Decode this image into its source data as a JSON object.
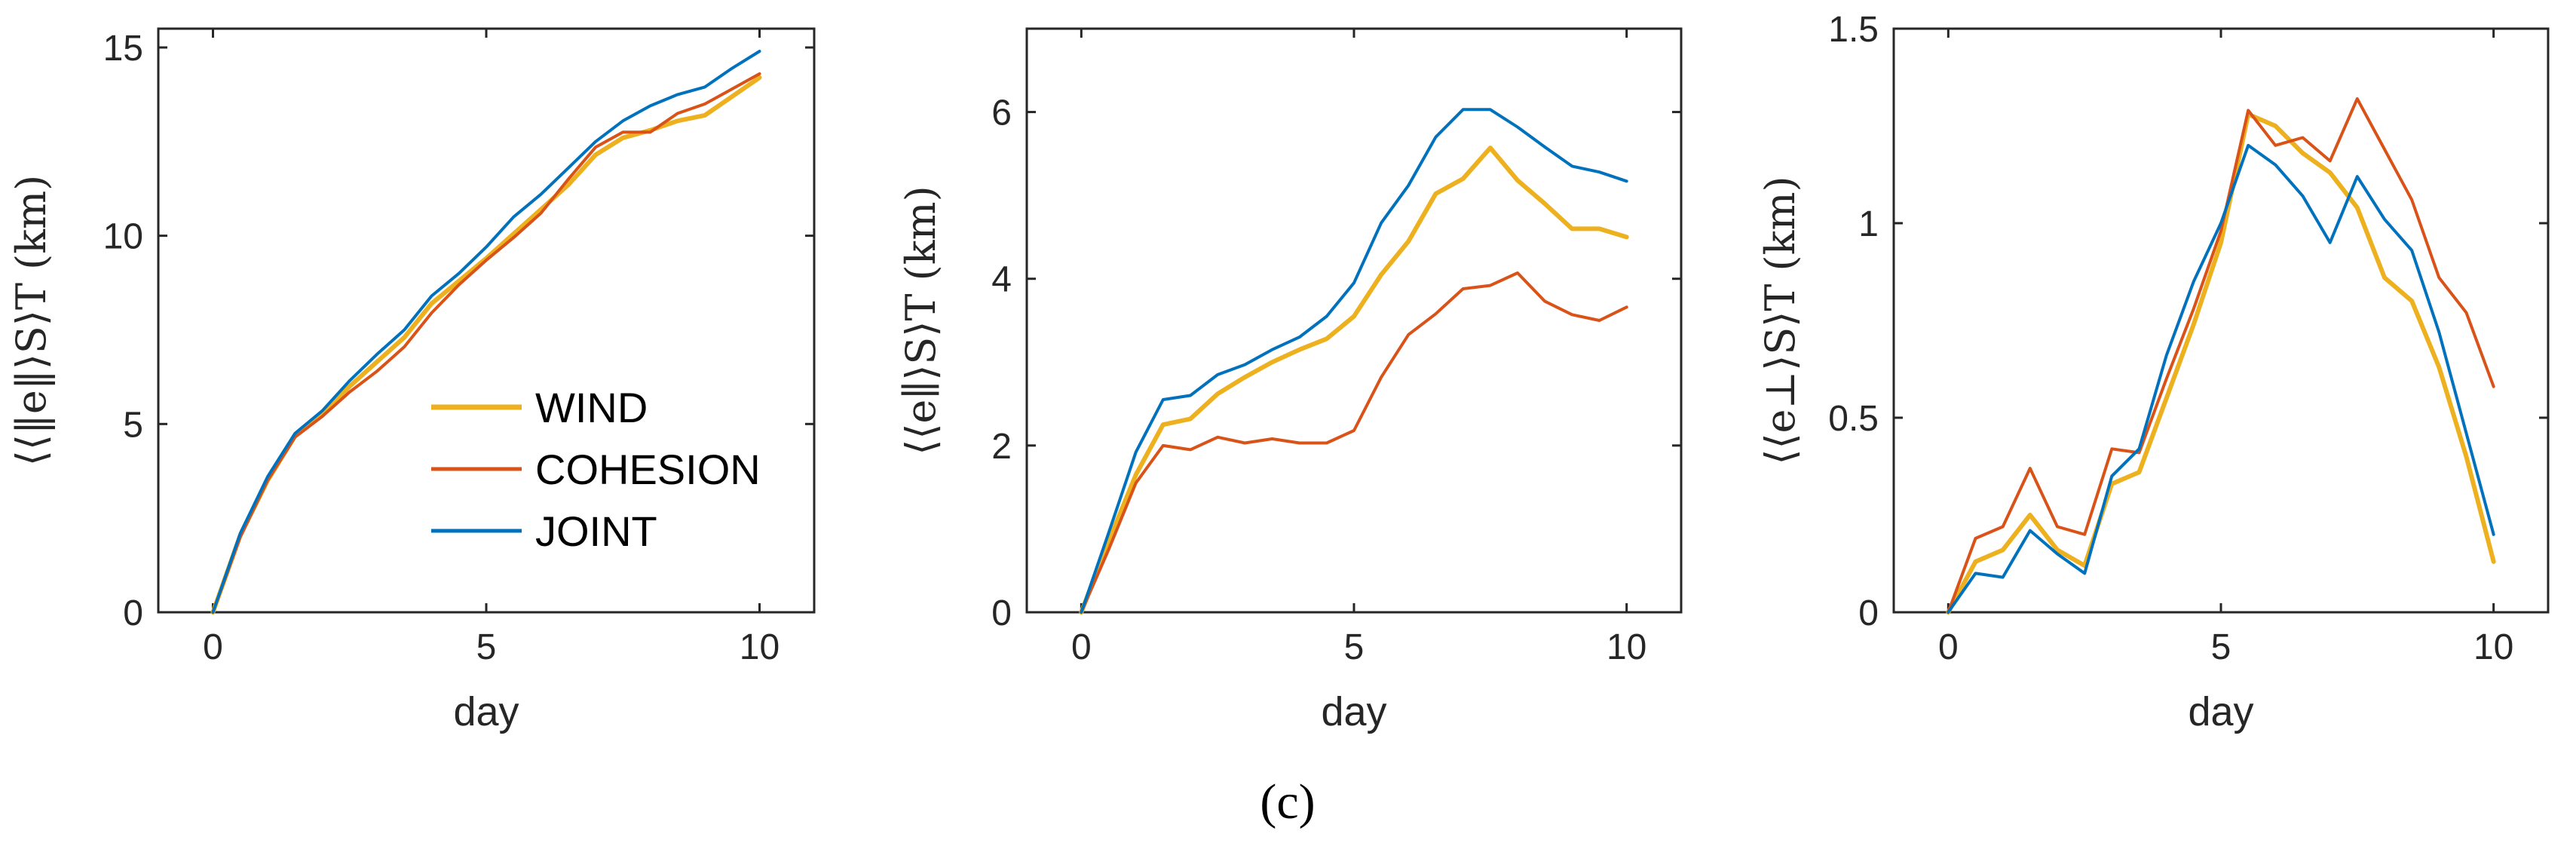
{
  "caption": "(c)",
  "colors": {
    "wind": "#EDB120",
    "cohesion": "#D95319",
    "joint": "#0072BD",
    "axis": "#262626"
  },
  "legend": {
    "entries": [
      "WIND",
      "COHESION",
      "JOINT"
    ]
  },
  "chart_data": [
    {
      "type": "line",
      "panel": "left",
      "title": "",
      "xlabel": "day",
      "ylabel": "⟨⟨‖e‖⟩S⟩T (km)",
      "xlim": [
        -1,
        11
      ],
      "ylim": [
        0,
        15.5
      ],
      "xticks": [
        0,
        5,
        10
      ],
      "xtick_labels": [
        "0",
        "5",
        "10"
      ],
      "yticks": [
        0,
        5,
        10,
        15
      ],
      "ytick_labels": [
        "0",
        "5",
        "10",
        "15"
      ],
      "x": [
        0,
        0.5,
        1,
        1.5,
        2,
        2.5,
        3,
        3.5,
        4,
        4.5,
        5,
        5.5,
        6,
        6.5,
        7,
        7.5,
        8,
        8.5,
        9,
        9.5,
        10
      ],
      "series": [
        {
          "name": "WIND",
          "key": "wind",
          "width": 6,
          "values": [
            0,
            2.05,
            3.5,
            4.68,
            5.25,
            6.0,
            6.65,
            7.3,
            8.2,
            8.8,
            9.4,
            10.05,
            10.7,
            11.35,
            12.15,
            12.6,
            12.8,
            13.05,
            13.2,
            13.7,
            14.2
          ]
        },
        {
          "name": "COHESION",
          "key": "cohesion",
          "width": 4,
          "values": [
            0,
            2.0,
            3.5,
            4.65,
            5.2,
            5.85,
            6.4,
            7.05,
            7.95,
            8.7,
            9.35,
            9.95,
            10.6,
            11.5,
            12.35,
            12.75,
            12.75,
            13.25,
            13.5,
            13.9,
            14.3
          ]
        },
        {
          "name": "JOINT",
          "key": "joint",
          "width": 4,
          "values": [
            0,
            2.1,
            3.6,
            4.75,
            5.35,
            6.15,
            6.85,
            7.5,
            8.4,
            9.0,
            9.7,
            10.5,
            11.1,
            11.8,
            12.5,
            13.05,
            13.45,
            13.75,
            13.95,
            14.45,
            14.9
          ]
        }
      ]
    },
    {
      "type": "line",
      "panel": "middle",
      "title": "",
      "xlabel": "day",
      "ylabel": "⟨⟨e∥⟩S⟩T (km)",
      "xlim": [
        -1,
        11
      ],
      "ylim": [
        0,
        7
      ],
      "xticks": [
        0,
        5,
        10
      ],
      "xtick_labels": [
        "0",
        "5",
        "10"
      ],
      "yticks": [
        0,
        2,
        4,
        6
      ],
      "ytick_labels": [
        "0",
        "2",
        "4",
        "6"
      ],
      "x": [
        0,
        0.5,
        1,
        1.5,
        2,
        2.5,
        3,
        3.5,
        4,
        4.5,
        5,
        5.5,
        6,
        6.5,
        7,
        7.5,
        8,
        8.5,
        9,
        9.5,
        10
      ],
      "series": [
        {
          "name": "WIND",
          "key": "wind",
          "width": 6,
          "values": [
            0,
            0.85,
            1.65,
            2.25,
            2.32,
            2.62,
            2.82,
            3.0,
            3.15,
            3.28,
            3.55,
            4.05,
            4.45,
            5.02,
            5.2,
            5.57,
            5.18,
            4.9,
            4.6,
            4.6,
            4.5
          ]
        },
        {
          "name": "COHESION",
          "key": "cohesion",
          "width": 4,
          "values": [
            0,
            0.75,
            1.55,
            2.0,
            1.95,
            2.1,
            2.03,
            2.08,
            2.03,
            2.03,
            2.18,
            2.82,
            3.33,
            3.58,
            3.88,
            3.92,
            4.07,
            3.73,
            3.57,
            3.5,
            3.66
          ]
        },
        {
          "name": "JOINT",
          "key": "joint",
          "width": 4,
          "values": [
            0,
            0.95,
            1.92,
            2.55,
            2.6,
            2.85,
            2.97,
            3.15,
            3.3,
            3.55,
            3.95,
            4.67,
            5.12,
            5.7,
            6.03,
            6.03,
            5.82,
            5.58,
            5.35,
            5.28,
            5.17
          ]
        }
      ]
    },
    {
      "type": "line",
      "panel": "right",
      "title": "",
      "xlabel": "day",
      "ylabel": "⟨⟨e⊥⟩S⟩T (km)",
      "xlim": [
        -1,
        11
      ],
      "ylim": [
        0,
        1.5
      ],
      "xticks": [
        0,
        5,
        10
      ],
      "xtick_labels": [
        "0",
        "5",
        "10"
      ],
      "yticks": [
        0,
        0.5,
        1,
        1.5
      ],
      "ytick_labels": [
        "0",
        "0.5",
        "1",
        "1.5"
      ],
      "x": [
        0,
        0.5,
        1,
        1.5,
        2,
        2.5,
        3,
        3.5,
        4,
        4.5,
        5,
        5.5,
        6,
        6.5,
        7,
        7.5,
        8,
        8.5,
        9,
        9.5,
        10
      ],
      "series": [
        {
          "name": "WIND",
          "key": "wind",
          "width": 6,
          "values": [
            0,
            0.13,
            0.16,
            0.25,
            0.16,
            0.12,
            0.33,
            0.36,
            0.55,
            0.74,
            0.95,
            1.28,
            1.25,
            1.18,
            1.13,
            1.04,
            0.86,
            0.8,
            0.63,
            0.4,
            0.13
          ]
        },
        {
          "name": "COHESION",
          "key": "cohesion",
          "width": 4,
          "values": [
            0,
            0.19,
            0.22,
            0.37,
            0.22,
            0.2,
            0.42,
            0.41,
            0.6,
            0.78,
            0.98,
            1.29,
            1.2,
            1.22,
            1.16,
            1.32,
            1.19,
            1.06,
            0.86,
            0.77,
            0.58
          ]
        },
        {
          "name": "JOINT",
          "key": "joint",
          "width": 4,
          "values": [
            0,
            0.1,
            0.09,
            0.21,
            0.15,
            0.1,
            0.35,
            0.42,
            0.66,
            0.85,
            1.0,
            1.2,
            1.15,
            1.07,
            0.95,
            1.12,
            1.01,
            0.93,
            0.72,
            0.46,
            0.2
          ]
        }
      ]
    }
  ]
}
